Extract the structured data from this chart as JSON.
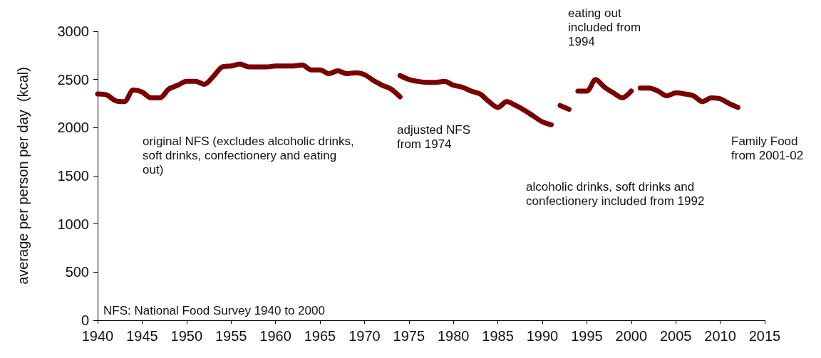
{
  "chart_data": {
    "type": "line",
    "ylabel": "average per person per day  (kcal)",
    "xlim": [
      1940,
      2015
    ],
    "xticks": [
      1940,
      1945,
      1950,
      1955,
      1960,
      1965,
      1970,
      1975,
      1980,
      1985,
      1990,
      1995,
      2000,
      2005,
      2010,
      2015
    ],
    "ylim": [
      0,
      3000
    ],
    "yticks": [
      0,
      500,
      1000,
      1500,
      2000,
      2500,
      3000
    ],
    "grid": false,
    "marker": "none",
    "line_style": "solid",
    "series": [
      {
        "color": "#7b0000",
        "x": [
          1940,
          1941,
          1942,
          1943,
          1944,
          1945,
          1946,
          1947,
          1948,
          1949,
          1950,
          1951,
          1952,
          1953,
          1954,
          1955,
          1956,
          1957,
          1958,
          1959,
          1960,
          1961,
          1962,
          1963,
          1964,
          1965,
          1966,
          1967,
          1968,
          1969,
          1970,
          1971,
          1972,
          1973,
          1974
        ],
        "values": [
          2350,
          2340,
          2280,
          2270,
          2390,
          2370,
          2310,
          2310,
          2400,
          2440,
          2480,
          2480,
          2450,
          2530,
          2630,
          2640,
          2660,
          2630,
          2630,
          2630,
          2640,
          2640,
          2640,
          2650,
          2600,
          2600,
          2560,
          2590,
          2560,
          2570,
          2550,
          2490,
          2440,
          2400,
          2320
        ]
      },
      {
        "color": "#7b0000",
        "x": [
          1974,
          1975,
          1976,
          1977,
          1978,
          1979,
          1980,
          1981,
          1982,
          1983,
          1984,
          1985,
          1986,
          1987,
          1988,
          1989,
          1990,
          1991
        ],
        "values": [
          2540,
          2500,
          2480,
          2470,
          2470,
          2480,
          2440,
          2420,
          2380,
          2350,
          2270,
          2210,
          2270,
          2230,
          2180,
          2120,
          2060,
          2030
        ]
      },
      {
        "color": "#7b0000",
        "x": [
          1992,
          1993
        ],
        "values": [
          2230,
          2190
        ]
      },
      {
        "color": "#7b0000",
        "x": [
          1994,
          1995,
          1996,
          1997,
          1998,
          1999,
          2000
        ],
        "values": [
          2380,
          2380,
          2500,
          2420,
          2360,
          2310,
          2380
        ]
      },
      {
        "color": "#7b0000",
        "x": [
          2001,
          2002,
          2003,
          2004,
          2005,
          2006,
          2007,
          2008,
          2009,
          2010,
          2011,
          2012
        ],
        "values": [
          2410,
          2410,
          2380,
          2330,
          2360,
          2350,
          2330,
          2270,
          2310,
          2300,
          2250,
          2210
        ]
      }
    ],
    "annotations": [
      "original NFS (excludes alcoholic drinks, soft drinks, confectionery and eating out)",
      "adjusted NFS from 1974",
      "eating out included from 1994",
      "alcoholic drinks, soft drinks and confectionery included from 1992",
      "Family Food from 2001-02",
      "NFS: National Food Survey 1940 to 2000"
    ]
  }
}
